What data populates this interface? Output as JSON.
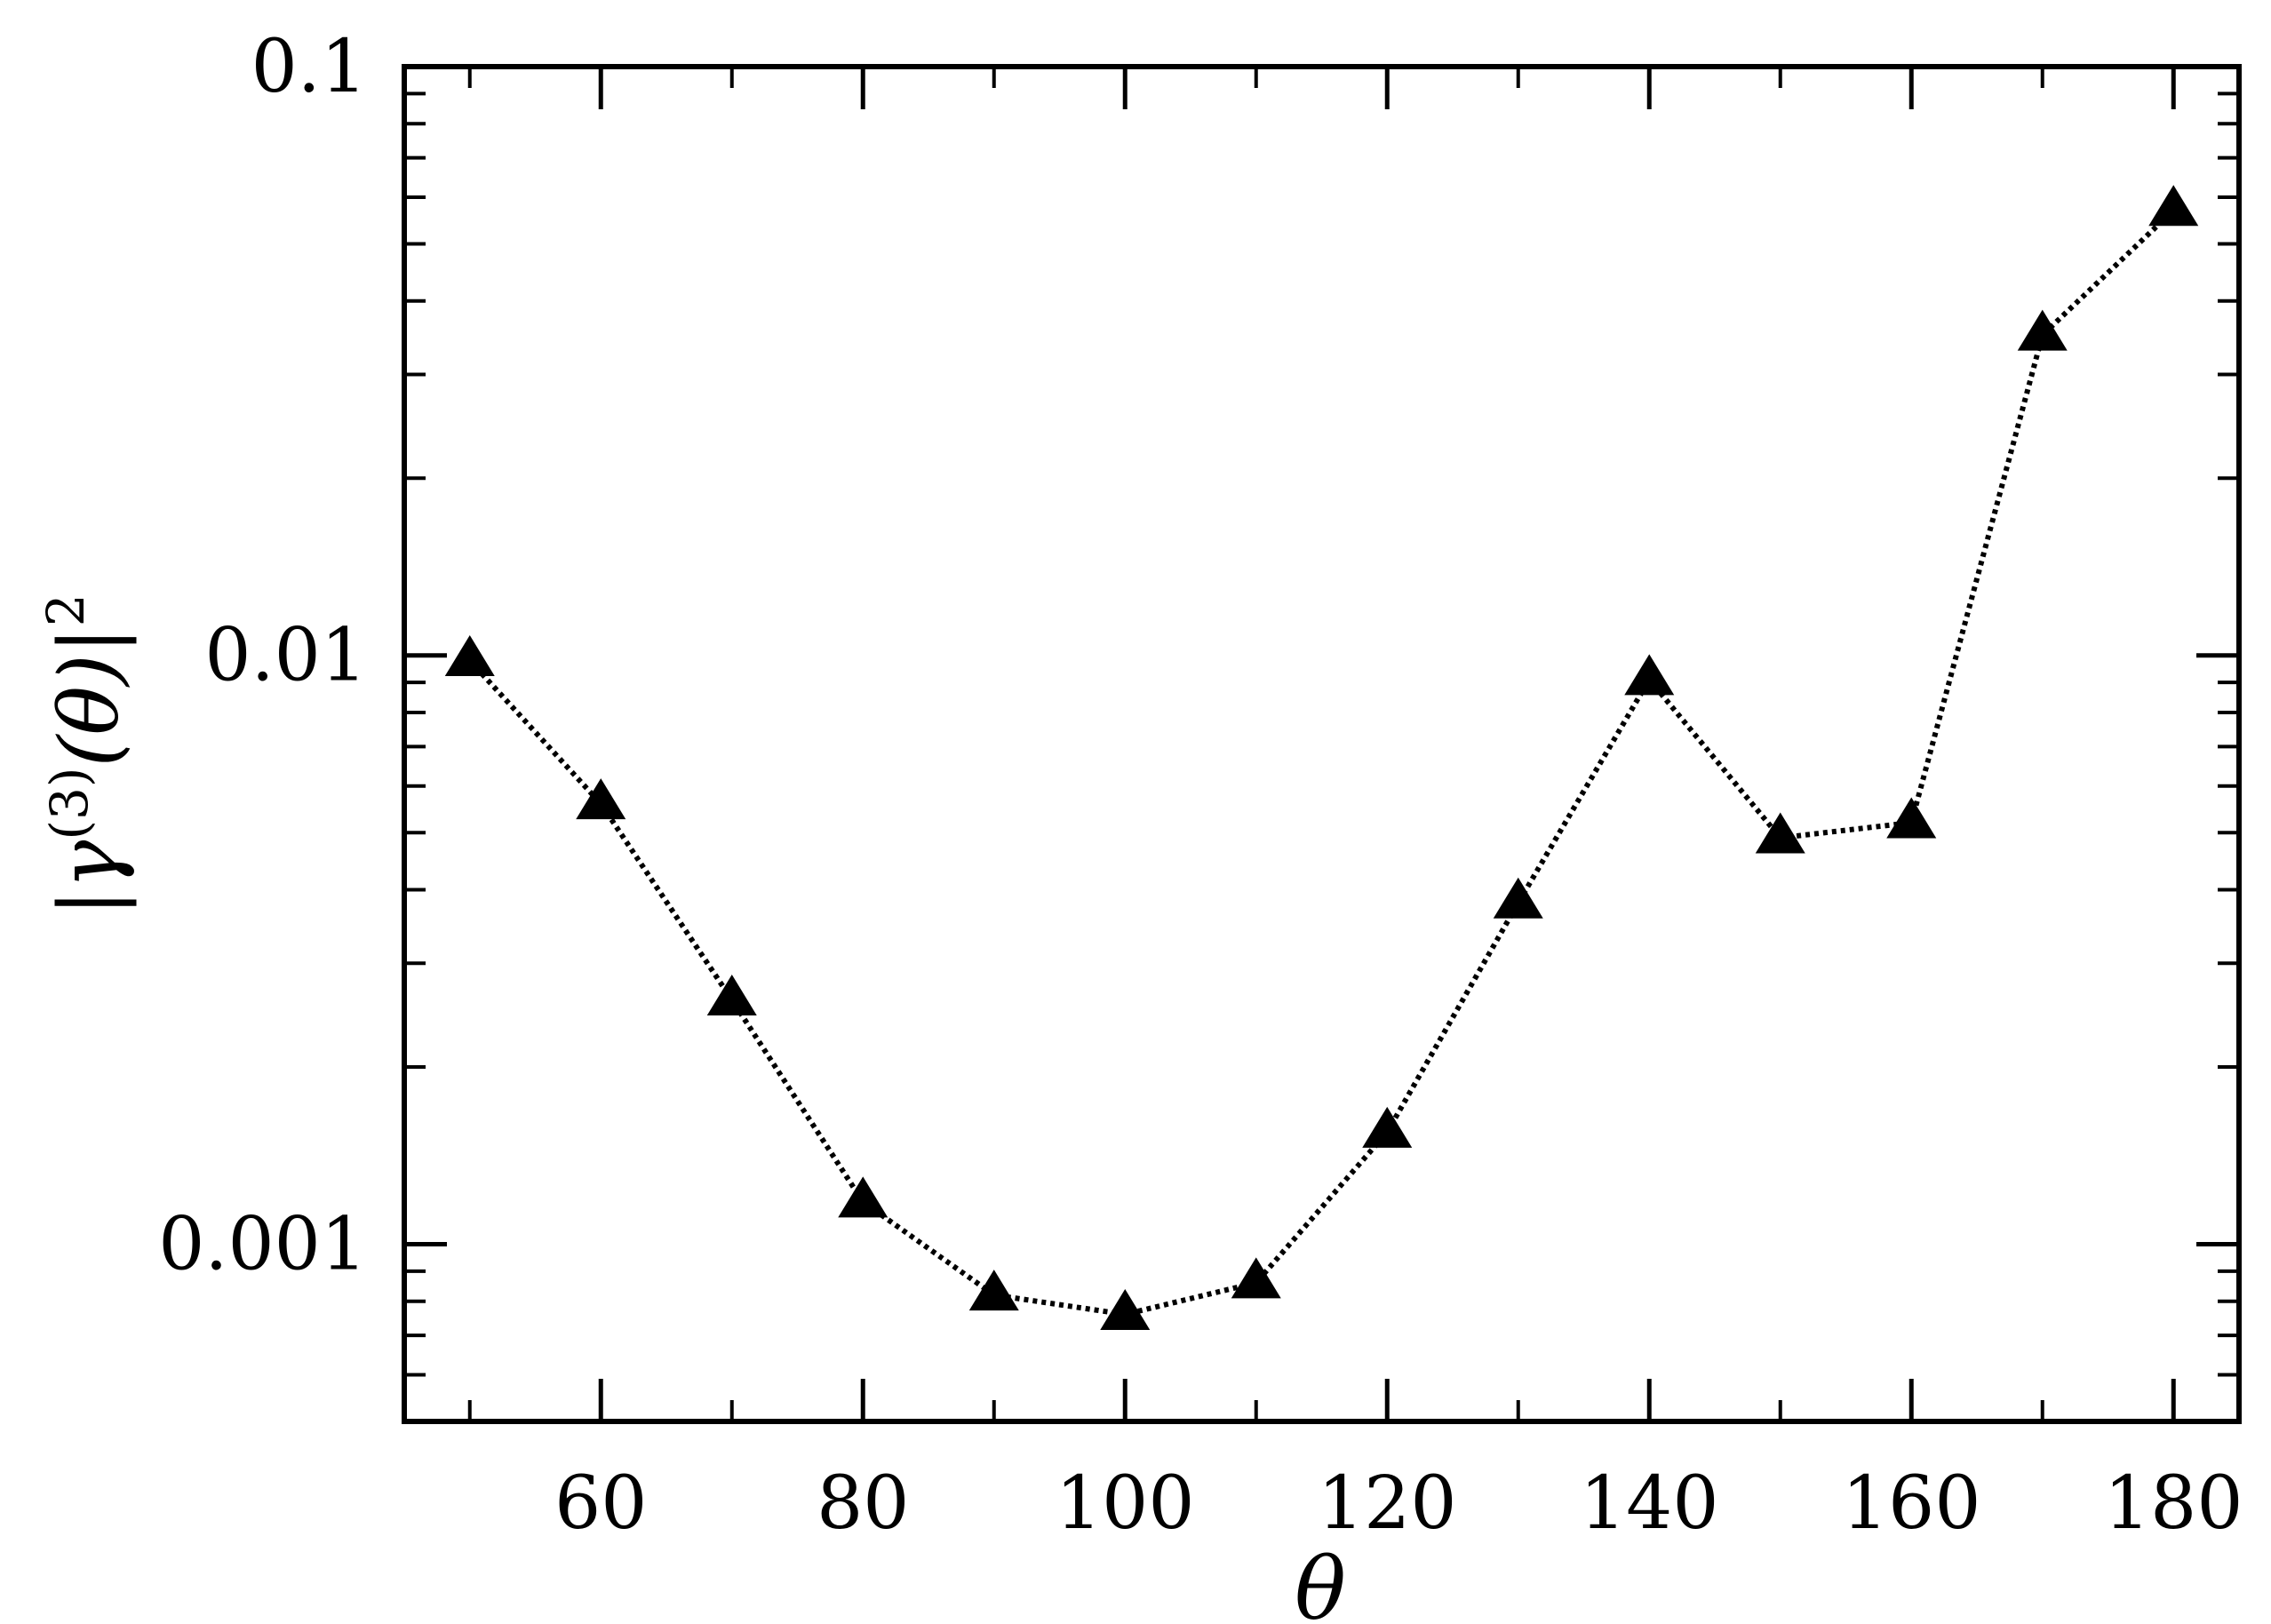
{
  "chart_data": {
    "type": "line",
    "title": "",
    "xlabel": "θ",
    "ylabel": {
      "prefix": "|γ",
      "superscript": "(3)",
      "middle": "(θ)|",
      "power": "2"
    },
    "x_scale": "linear",
    "y_scale": "log",
    "xlim": [
      45,
      185
    ],
    "ylim": [
      0.0005,
      0.1
    ],
    "x_ticks": [
      60,
      80,
      100,
      120,
      140,
      160,
      180
    ],
    "x_tick_labels": [
      "60",
      "80",
      "100",
      "120",
      "140",
      "160",
      "180"
    ],
    "y_ticks": [
      0.001,
      0.01,
      0.1
    ],
    "y_tick_labels": [
      "0.001",
      "0.01",
      "0.1"
    ],
    "grid": false,
    "series": [
      {
        "marker": "triangle",
        "line_style": "dotted",
        "color": "#000000",
        "x": [
          50,
          60,
          70,
          80,
          90,
          100,
          110,
          120,
          130,
          140,
          150,
          160,
          170,
          180
        ],
        "y": [
          0.0098,
          0.0056,
          0.0026,
          0.00118,
          0.00082,
          0.00076,
          0.00086,
          0.00155,
          0.0038,
          0.0091,
          0.0049,
          0.0052,
          0.035,
          0.057
        ]
      }
    ]
  }
}
